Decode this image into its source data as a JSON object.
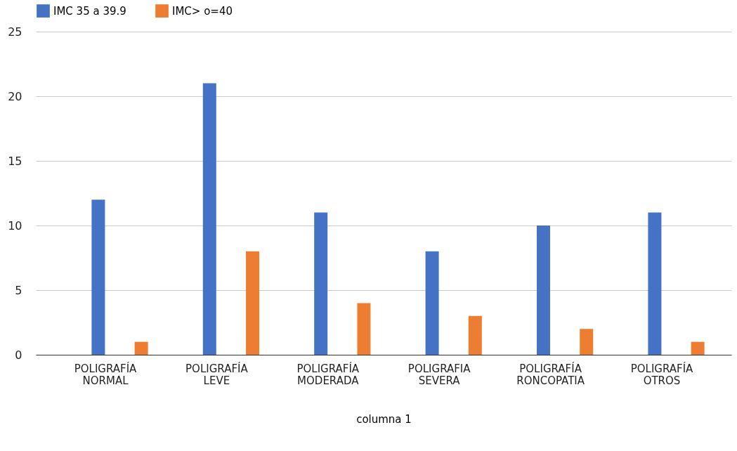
{
  "chart_data": {
    "type": "bar",
    "xlabel": "columna 1",
    "categories": [
      "POLIGRAFÍA NORMAL",
      "POLIGRAFÍA LEVE",
      "POLIGRAFÍA MODERADA",
      "POLIGRAFIA SEVERA",
      "POLIGRAFÍA RONCOPATIA",
      "POLIGRAFÍA OTROS"
    ],
    "series": [
      {
        "name": "IMC 35 a 39.9",
        "color": "#4472c4",
        "values": [
          12,
          21,
          11,
          8,
          10,
          11
        ]
      },
      {
        "name": "IMC> o=40",
        "color": "#ed7d31",
        "values": [
          1,
          8,
          4,
          3,
          2,
          1
        ]
      }
    ],
    "ylim": [
      0,
      25
    ],
    "yticks": [
      0,
      5,
      10,
      15,
      20,
      25
    ],
    "grid": "y",
    "legend": "top"
  }
}
